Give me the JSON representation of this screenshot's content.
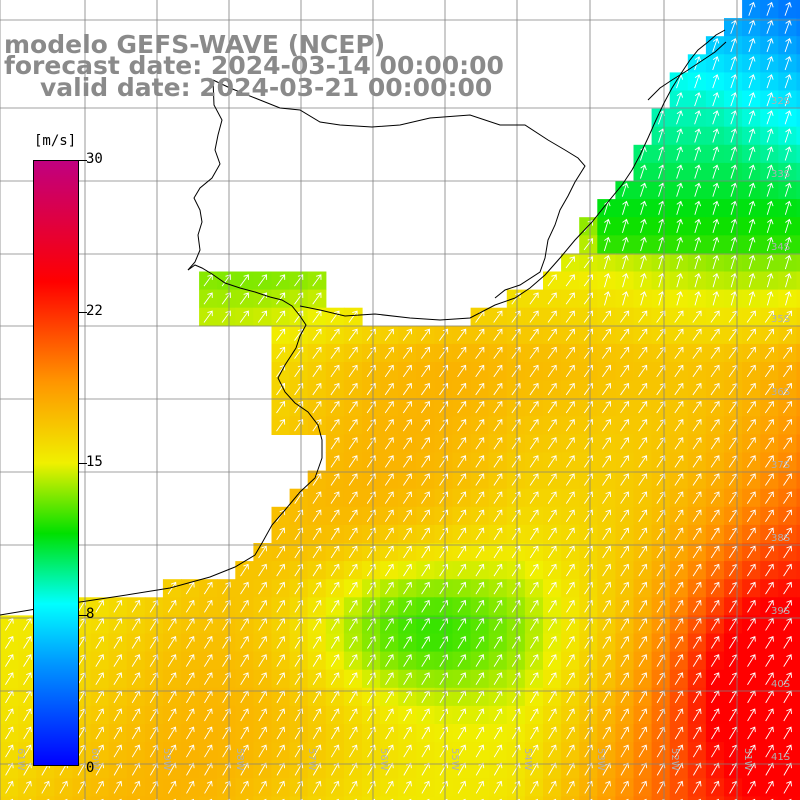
{
  "header": {
    "line1": "modelo GEFS-WAVE (NCEP)",
    "line2": "forecast date: 2024-03-14 00:00:00",
    "line3": "valid date: 2024-03-21 00:00:00"
  },
  "colorbar": {
    "unit": "[m/s]",
    "min": 0,
    "max": 30,
    "ticks": [
      "30",
      "22",
      "15",
      "8",
      "0"
    ],
    "tick_values": [
      30,
      22,
      15,
      8,
      0
    ],
    "stops": [
      {
        "value": 0,
        "color": "#0000ff"
      },
      {
        "value": 5,
        "color": "#0096ff"
      },
      {
        "value": 8,
        "color": "#00ffff"
      },
      {
        "value": 11.5,
        "color": "#00e000"
      },
      {
        "value": 15,
        "color": "#f0f000"
      },
      {
        "value": 19,
        "color": "#ff9600"
      },
      {
        "value": 24,
        "color": "#ff0000"
      },
      {
        "value": 30,
        "color": "#c00080"
      }
    ]
  },
  "map": {
    "lon_min": -61,
    "lon_max": -50.1,
    "lat_min": -41.2,
    "lat_max": -30.4,
    "lon_labels": [
      "61W",
      "60W",
      "59W",
      "58W",
      "57W",
      "56W",
      "55W",
      "54W",
      "53W",
      "52W",
      "51W"
    ],
    "lat_labels": [
      "32S",
      "33S",
      "34S",
      "35S",
      "36S",
      "37S",
      "38S",
      "39S",
      "40S",
      "41S"
    ],
    "colors": {
      "land": "#ffffff",
      "grid": "#808080",
      "coast": "#000000",
      "arrow": "#ffffff",
      "label": "#b0b0b0"
    }
  }
}
